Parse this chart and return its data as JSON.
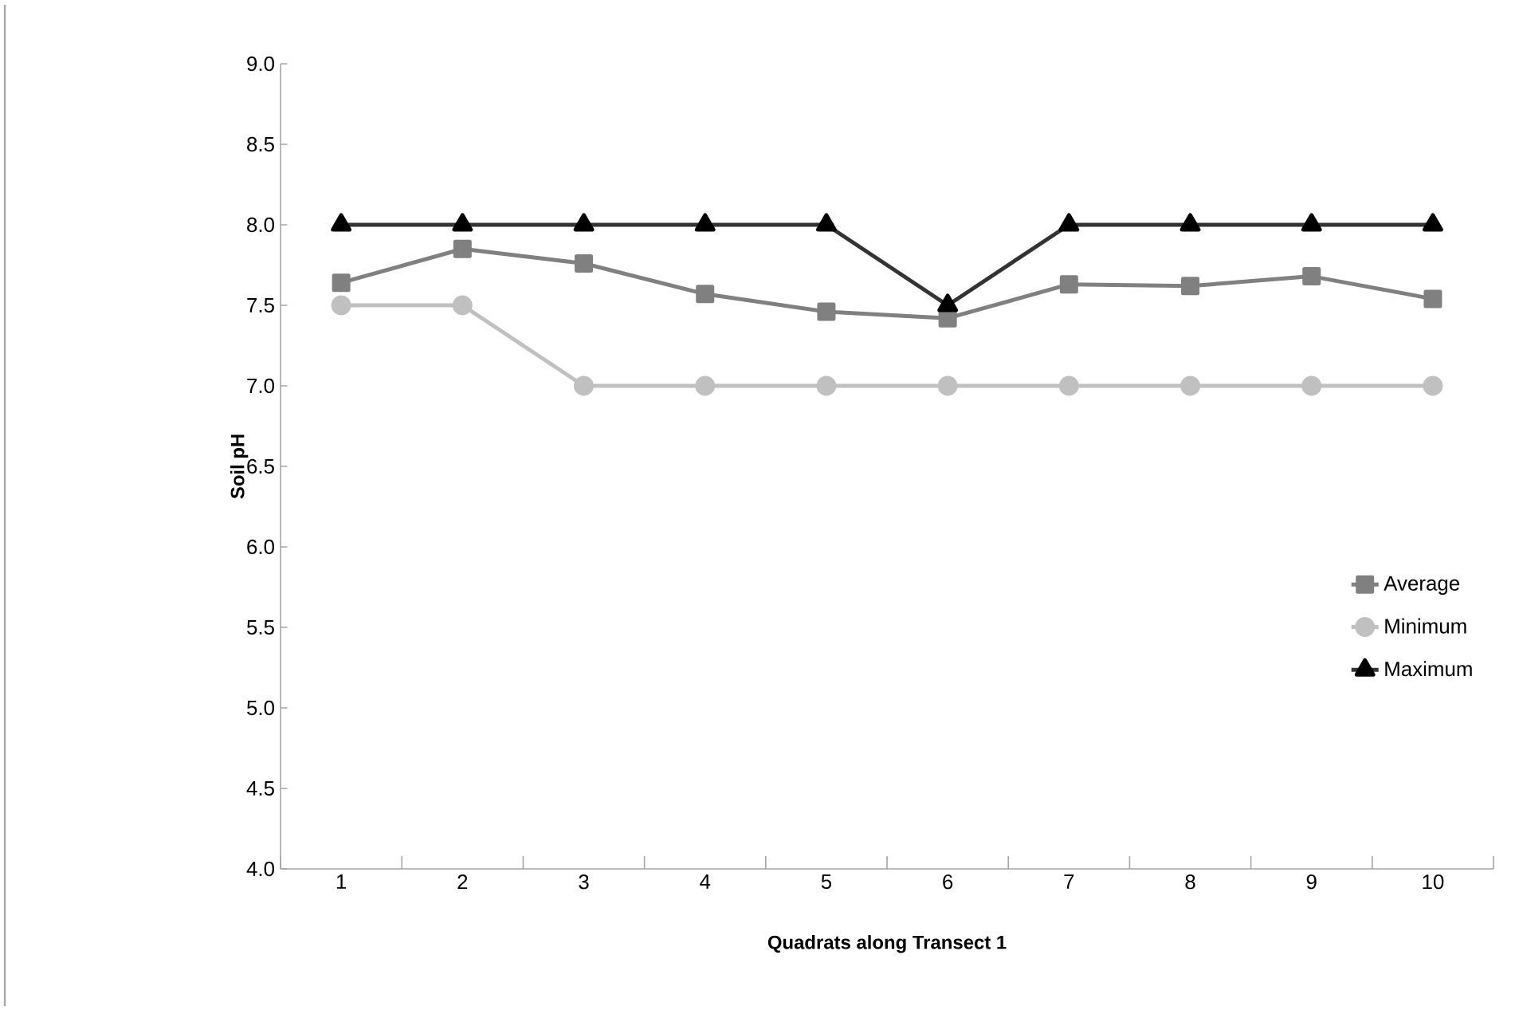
{
  "chart_data": {
    "type": "line",
    "xlabel": "Quadrats along Transect 1",
    "ylabel": "Soil pH",
    "categories": [
      "1",
      "2",
      "3",
      "4",
      "5",
      "6",
      "7",
      "8",
      "9",
      "10"
    ],
    "series": [
      {
        "name": "Average",
        "color": "#808080",
        "marker": "square",
        "values": [
          7.64,
          7.85,
          7.76,
          7.57,
          7.46,
          7.42,
          7.63,
          7.62,
          7.68,
          7.54
        ]
      },
      {
        "name": "Minimum",
        "color": "#c0c0c0",
        "marker": "circle",
        "values": [
          7.5,
          7.5,
          7.0,
          7.0,
          7.0,
          7.0,
          7.0,
          7.0,
          7.0,
          7.0
        ]
      },
      {
        "name": "Maximum",
        "color": "#333333",
        "marker": "triangle",
        "values": [
          8.0,
          8.0,
          8.0,
          8.0,
          8.0,
          7.5,
          8.0,
          8.0,
          8.0,
          8.0
        ]
      }
    ],
    "ylim": [
      4.0,
      9.0
    ],
    "yticks": [
      {
        "value": 4.0,
        "label": "4.0"
      },
      {
        "value": 4.5,
        "label": "4.5"
      },
      {
        "value": 5.0,
        "label": "5.0"
      },
      {
        "value": 5.5,
        "label": "5.5"
      },
      {
        "value": 6.0,
        "label": "6.0"
      },
      {
        "value": 6.5,
        "label": "6.5"
      },
      {
        "value": 7.0,
        "label": "7.0"
      },
      {
        "value": 7.5,
        "label": "7.5"
      },
      {
        "value": 8.0,
        "label": "8.0"
      },
      {
        "value": 8.5,
        "label": "8.5"
      },
      {
        "value": 9.0,
        "label": "9.0"
      }
    ],
    "grid": false,
    "legend": "right",
    "line_style": "solid"
  }
}
